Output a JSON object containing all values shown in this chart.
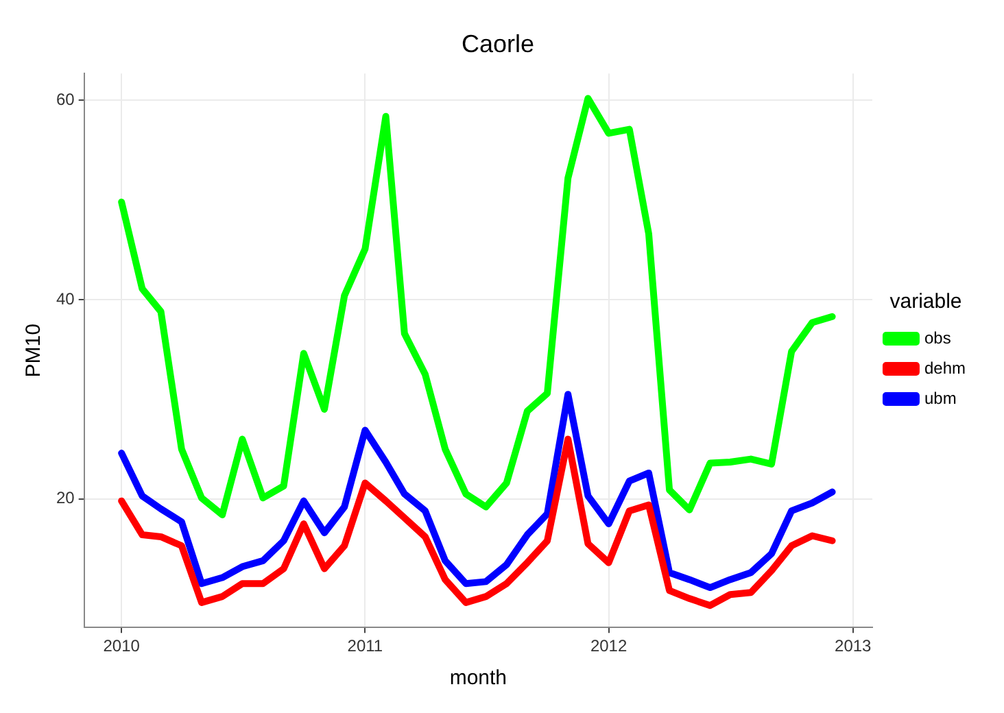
{
  "chart_data": {
    "type": "line",
    "title": "Caorle",
    "xlabel": "month",
    "ylabel": "PM10",
    "legend_title": "variable",
    "x": [
      "2010-01",
      "2010-02",
      "2010-03",
      "2010-04",
      "2010-05",
      "2010-06",
      "2010-07",
      "2010-08",
      "2010-09",
      "2010-10",
      "2010-11",
      "2010-12",
      "2011-01",
      "2011-02",
      "2011-03",
      "2011-04",
      "2011-05",
      "2011-06",
      "2011-07",
      "2011-08",
      "2011-09",
      "2011-10",
      "2011-11",
      "2011-12",
      "2012-01",
      "2012-02",
      "2012-03",
      "2012-04",
      "2012-05",
      "2012-06",
      "2012-07",
      "2012-08",
      "2012-09",
      "2012-10",
      "2012-11",
      "2012-12"
    ],
    "series": [
      {
        "name": "obs",
        "color": "#00ff00",
        "values": [
          49.8,
          41.1,
          38.8,
          25.0,
          20.1,
          18.4,
          26.0,
          20.1,
          21.3,
          34.6,
          29.0,
          40.4,
          45.1,
          58.4,
          36.6,
          32.5,
          25.0,
          20.5,
          19.2,
          21.6,
          28.8,
          30.6,
          52.2,
          60.2,
          56.7,
          57.1,
          46.6,
          20.9,
          18.9,
          23.6,
          23.7,
          24.0,
          23.5,
          34.8,
          37.7,
          38.3
        ]
      },
      {
        "name": "dehm",
        "color": "#ff0000",
        "values": [
          19.8,
          16.4,
          16.2,
          15.3,
          9.6,
          10.2,
          11.5,
          11.5,
          13.0,
          17.5,
          13.0,
          15.3,
          21.6,
          19.8,
          18.1,
          16.2,
          11.9,
          9.6,
          10.2,
          11.5,
          13.6,
          15.8,
          26.0,
          15.5,
          13.6,
          18.8,
          19.4,
          10.8,
          10.0,
          9.3,
          10.4,
          10.6,
          12.8,
          15.3,
          16.3,
          15.8
        ]
      },
      {
        "name": "ubm",
        "color": "#0000ff",
        "values": [
          24.6,
          20.3,
          19.0,
          17.7,
          11.5,
          12.1,
          13.2,
          13.8,
          15.8,
          19.8,
          16.6,
          19.2,
          26.9,
          23.7,
          20.5,
          18.8,
          13.8,
          11.5,
          11.7,
          13.4,
          16.4,
          18.5,
          30.5,
          20.3,
          17.5,
          21.8,
          22.6,
          12.6,
          11.9,
          11.1,
          11.9,
          12.6,
          14.5,
          18.8,
          19.6,
          20.7
        ]
      }
    ],
    "xlim": [
      "2009-11-06",
      "2013-01-30"
    ],
    "xticks": [
      "2010",
      "2011",
      "2012",
      "2013"
    ],
    "ylim": [
      7.1,
      62.7
    ],
    "yticks": [
      20,
      40,
      60
    ],
    "grid": true,
    "legend": "right",
    "marker": "none",
    "line_style": "solid"
  }
}
